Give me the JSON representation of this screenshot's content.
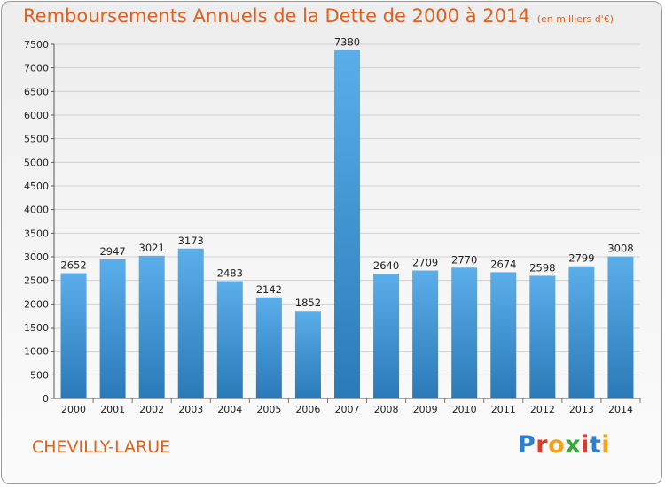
{
  "title": "Remboursements Annuels de la Dette de 2000 à 2014",
  "title_unit": "(en milliers d'€)",
  "city": "CHEVILLY-LARUE",
  "logo": {
    "letters": [
      "P",
      "r",
      "o",
      "x",
      "i",
      "t",
      "i"
    ],
    "colors": [
      "#2f7fd0",
      "#e03a2a",
      "#f2a21b",
      "#3aa53a",
      "#e03a2a",
      "#2f7fd0",
      "#f2a21b"
    ]
  },
  "colors": {
    "title": "#e0601e",
    "bar_light": "#5aaeea",
    "bar_dark": "#2a7ab8",
    "grid": "#d0d0d0"
  },
  "chart_data": {
    "type": "bar",
    "categories": [
      "2000",
      "2001",
      "2002",
      "2003",
      "2004",
      "2005",
      "2006",
      "2007",
      "2008",
      "2009",
      "2010",
      "2011",
      "2012",
      "2013",
      "2014"
    ],
    "values": [
      2652,
      2947,
      3021,
      3173,
      2483,
      2142,
      1852,
      7380,
      2640,
      2709,
      2770,
      2674,
      2598,
      2799,
      3008
    ],
    "ylim": [
      0,
      7500
    ],
    "yticks": [
      0,
      500,
      1000,
      1500,
      2000,
      2500,
      3000,
      3500,
      4000,
      4500,
      5000,
      5500,
      6000,
      6500,
      7000,
      7500
    ],
    "grid": true,
    "legend": "none"
  }
}
